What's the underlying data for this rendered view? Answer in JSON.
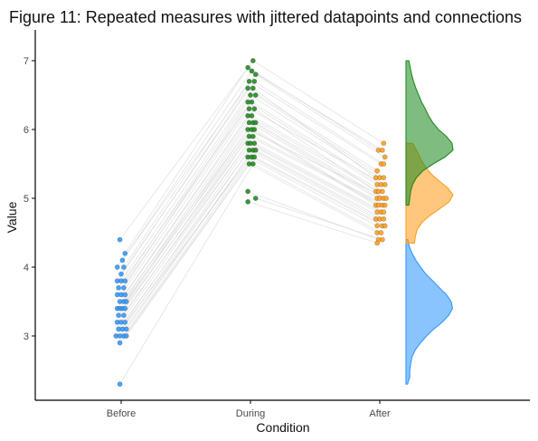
{
  "chart_data": {
    "type": "scatter",
    "title": "Figure 11: Repeated measures with jittered datapoints and connections",
    "xlabel": "Condition",
    "ylabel": "Value",
    "categories": [
      "Before",
      "During",
      "After"
    ],
    "y_ticks": [
      3,
      4,
      5,
      6,
      7
    ],
    "ylim": [
      2.2,
      7.5
    ],
    "grid": false,
    "legend": "none",
    "colors": {
      "Before": "#3399FF",
      "During": "#238B23",
      "After": "#FF9E1F",
      "lines": "#D9D9D9"
    },
    "series": [
      {
        "condition": "Before",
        "points": [
          {
            "x": 0.99,
            "y": 4.4
          },
          {
            "x": 1.03,
            "y": 4.2
          },
          {
            "x": 1.01,
            "y": 4.1
          },
          {
            "x": 0.97,
            "y": 4.0
          },
          {
            "x": 1.02,
            "y": 4.0
          },
          {
            "x": 1.0,
            "y": 3.9
          },
          {
            "x": 0.97,
            "y": 3.8
          },
          {
            "x": 1.0,
            "y": 3.8
          },
          {
            "x": 1.03,
            "y": 3.8
          },
          {
            "x": 0.98,
            "y": 3.7
          },
          {
            "x": 1.02,
            "y": 3.7
          },
          {
            "x": 0.97,
            "y": 3.6
          },
          {
            "x": 1.0,
            "y": 3.6
          },
          {
            "x": 1.03,
            "y": 3.6
          },
          {
            "x": 0.99,
            "y": 3.5
          },
          {
            "x": 1.02,
            "y": 3.5
          },
          {
            "x": 1.04,
            "y": 3.5
          },
          {
            "x": 0.97,
            "y": 3.4
          },
          {
            "x": 0.99,
            "y": 3.4
          },
          {
            "x": 1.01,
            "y": 3.4
          },
          {
            "x": 1.03,
            "y": 3.4
          },
          {
            "x": 0.98,
            "y": 3.3
          },
          {
            "x": 1.02,
            "y": 3.3
          },
          {
            "x": 0.97,
            "y": 3.2
          },
          {
            "x": 1.0,
            "y": 3.2
          },
          {
            "x": 1.03,
            "y": 3.2
          },
          {
            "x": 0.98,
            "y": 3.1
          },
          {
            "x": 1.01,
            "y": 3.1
          },
          {
            "x": 1.04,
            "y": 3.1
          },
          {
            "x": 0.96,
            "y": 3.0
          },
          {
            "x": 0.99,
            "y": 3.0
          },
          {
            "x": 1.02,
            "y": 3.0
          },
          {
            "x": 1.04,
            "y": 3.0
          },
          {
            "x": 0.99,
            "y": 2.9
          },
          {
            "x": 0.99,
            "y": 2.3
          }
        ]
      },
      {
        "condition": "During",
        "points": [
          {
            "x": 2.02,
            "y": 7.0
          },
          {
            "x": 1.98,
            "y": 6.9
          },
          {
            "x": 2.01,
            "y": 6.85
          },
          {
            "x": 2.04,
            "y": 6.8
          },
          {
            "x": 1.99,
            "y": 6.7
          },
          {
            "x": 2.03,
            "y": 6.7
          },
          {
            "x": 1.98,
            "y": 6.6
          },
          {
            "x": 2.02,
            "y": 6.6
          },
          {
            "x": 2.0,
            "y": 6.5
          },
          {
            "x": 2.04,
            "y": 6.5
          },
          {
            "x": 1.98,
            "y": 6.4
          },
          {
            "x": 2.01,
            "y": 6.4
          },
          {
            "x": 1.99,
            "y": 6.3
          },
          {
            "x": 2.03,
            "y": 6.3
          },
          {
            "x": 1.98,
            "y": 6.2
          },
          {
            "x": 2.01,
            "y": 6.2
          },
          {
            "x": 1.99,
            "y": 6.1
          },
          {
            "x": 2.02,
            "y": 6.1
          },
          {
            "x": 2.04,
            "y": 6.1
          },
          {
            "x": 1.98,
            "y": 6.0
          },
          {
            "x": 2.01,
            "y": 6.0
          },
          {
            "x": 2.03,
            "y": 6.0
          },
          {
            "x": 1.99,
            "y": 5.9
          },
          {
            "x": 2.02,
            "y": 5.9
          },
          {
            "x": 1.98,
            "y": 5.8
          },
          {
            "x": 2.0,
            "y": 5.8
          },
          {
            "x": 2.03,
            "y": 5.8
          },
          {
            "x": 1.99,
            "y": 5.7
          },
          {
            "x": 2.02,
            "y": 5.7
          },
          {
            "x": 2.04,
            "y": 5.7
          },
          {
            "x": 1.98,
            "y": 5.6
          },
          {
            "x": 2.01,
            "y": 5.6
          },
          {
            "x": 2.03,
            "y": 5.6
          },
          {
            "x": 1.99,
            "y": 5.5
          },
          {
            "x": 2.02,
            "y": 5.5
          },
          {
            "x": 1.98,
            "y": 5.1
          },
          {
            "x": 2.04,
            "y": 5.0
          },
          {
            "x": 1.98,
            "y": 4.95
          }
        ]
      },
      {
        "condition": "After",
        "points": [
          {
            "x": 3.03,
            "y": 5.8
          },
          {
            "x": 2.99,
            "y": 5.7
          },
          {
            "x": 3.02,
            "y": 5.7
          },
          {
            "x": 3.04,
            "y": 5.6
          },
          {
            "x": 3.01,
            "y": 5.5
          },
          {
            "x": 3.03,
            "y": 5.5
          },
          {
            "x": 2.98,
            "y": 5.4
          },
          {
            "x": 2.97,
            "y": 5.3
          },
          {
            "x": 3.0,
            "y": 5.3
          },
          {
            "x": 3.03,
            "y": 5.3
          },
          {
            "x": 2.98,
            "y": 5.2
          },
          {
            "x": 3.01,
            "y": 5.2
          },
          {
            "x": 3.04,
            "y": 5.2
          },
          {
            "x": 2.97,
            "y": 5.1
          },
          {
            "x": 2.99,
            "y": 5.1
          },
          {
            "x": 3.02,
            "y": 5.1
          },
          {
            "x": 2.98,
            "y": 5.0
          },
          {
            "x": 3.0,
            "y": 5.0
          },
          {
            "x": 3.03,
            "y": 5.0
          },
          {
            "x": 3.05,
            "y": 5.0
          },
          {
            "x": 2.97,
            "y": 4.9
          },
          {
            "x": 2.99,
            "y": 4.9
          },
          {
            "x": 3.02,
            "y": 4.9
          },
          {
            "x": 3.04,
            "y": 4.9
          },
          {
            "x": 2.98,
            "y": 4.8
          },
          {
            "x": 3.01,
            "y": 4.8
          },
          {
            "x": 3.03,
            "y": 4.8
          },
          {
            "x": 2.97,
            "y": 4.7
          },
          {
            "x": 3.0,
            "y": 4.7
          },
          {
            "x": 3.03,
            "y": 4.7
          },
          {
            "x": 2.98,
            "y": 4.6
          },
          {
            "x": 3.02,
            "y": 4.6
          },
          {
            "x": 3.04,
            "y": 4.6
          },
          {
            "x": 2.98,
            "y": 4.5
          },
          {
            "x": 3.01,
            "y": 4.5
          },
          {
            "x": 2.99,
            "y": 4.4
          },
          {
            "x": 3.02,
            "y": 4.4
          },
          {
            "x": 2.98,
            "y": 4.35
          }
        ]
      }
    ],
    "densities": [
      {
        "condition": "Before",
        "y_range": [
          2.3,
          4.4
        ],
        "profile": [
          [
            2.3,
            0.03
          ],
          [
            2.4,
            0.08
          ],
          [
            2.5,
            0.08
          ],
          [
            2.6,
            0.1
          ],
          [
            2.7,
            0.13
          ],
          [
            2.8,
            0.2
          ],
          [
            2.9,
            0.31
          ],
          [
            3.0,
            0.44
          ],
          [
            3.1,
            0.59
          ],
          [
            3.2,
            0.77
          ],
          [
            3.3,
            0.91
          ],
          [
            3.4,
            0.99
          ],
          [
            3.5,
            0.96
          ],
          [
            3.6,
            0.86
          ],
          [
            3.7,
            0.71
          ],
          [
            3.8,
            0.57
          ],
          [
            3.9,
            0.42
          ],
          [
            4.0,
            0.31
          ],
          [
            4.1,
            0.21
          ],
          [
            4.2,
            0.13
          ],
          [
            4.3,
            0.07
          ],
          [
            4.4,
            0.04
          ]
        ]
      },
      {
        "condition": "During",
        "y_range": [
          4.9,
          7.0
        ],
        "profile": [
          [
            4.9,
            0.06
          ],
          [
            5.0,
            0.08
          ],
          [
            5.1,
            0.1
          ],
          [
            5.2,
            0.14
          ],
          [
            5.3,
            0.22
          ],
          [
            5.4,
            0.36
          ],
          [
            5.5,
            0.58
          ],
          [
            5.6,
            0.83
          ],
          [
            5.7,
            1.0
          ],
          [
            5.8,
            0.98
          ],
          [
            5.9,
            0.86
          ],
          [
            6.0,
            0.69
          ],
          [
            6.1,
            0.57
          ],
          [
            6.2,
            0.48
          ],
          [
            6.3,
            0.41
          ],
          [
            6.4,
            0.33
          ],
          [
            6.5,
            0.27
          ],
          [
            6.6,
            0.21
          ],
          [
            6.7,
            0.16
          ],
          [
            6.8,
            0.12
          ],
          [
            6.9,
            0.09
          ],
          [
            7.0,
            0.06
          ]
        ]
      },
      {
        "condition": "After",
        "y_range": [
          4.35,
          5.8
        ],
        "profile": [
          [
            4.35,
            0.18
          ],
          [
            4.45,
            0.2
          ],
          [
            4.55,
            0.24
          ],
          [
            4.65,
            0.34
          ],
          [
            4.75,
            0.51
          ],
          [
            4.85,
            0.72
          ],
          [
            4.95,
            0.92
          ],
          [
            5.05,
            1.0
          ],
          [
            5.15,
            0.89
          ],
          [
            5.25,
            0.71
          ],
          [
            5.35,
            0.54
          ],
          [
            5.45,
            0.42
          ],
          [
            5.55,
            0.33
          ],
          [
            5.65,
            0.26
          ],
          [
            5.75,
            0.18
          ],
          [
            5.8,
            0.14
          ]
        ]
      }
    ]
  }
}
